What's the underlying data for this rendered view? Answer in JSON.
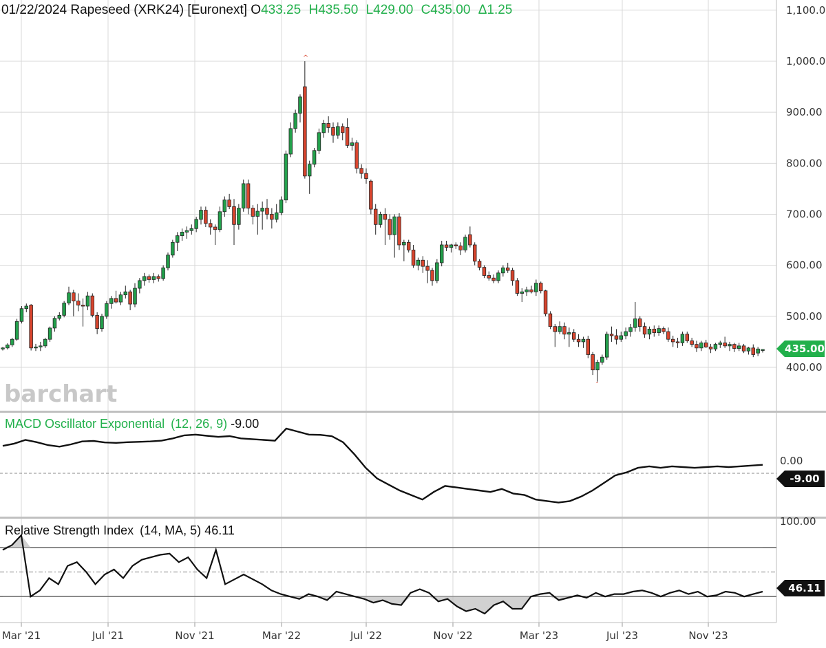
{
  "header": {
    "date": "01/22/2024",
    "symbol": "Rapeseed (XRK24) [Euronext]",
    "open_label": "O",
    "open": "433.25",
    "high": "H435.50",
    "low": "L429.00",
    "close": "C435.00",
    "change": "Δ1.25"
  },
  "watermark": "barchart",
  "colors": {
    "up": "#22a04b",
    "down": "#d9452e",
    "badge_green": "#22b04b",
    "badge_black": "#111111",
    "grid": "#d8d8d8",
    "macd_title": "#22b04b"
  },
  "price_axis": {
    "ticks": [
      "1,100.00",
      "1,000.00",
      "900.00",
      "800.00",
      "700.00",
      "600.00",
      "500.00",
      "400.00"
    ],
    "tick_values": [
      1100,
      1000,
      900,
      800,
      700,
      600,
      500,
      400
    ]
  },
  "last_price_badge": "435.00",
  "x_axis": {
    "labels": [
      "Mar '21",
      "Jul '21",
      "Nov '21",
      "Mar '22",
      "Jul '22",
      "Nov '22",
      "Mar '23",
      "Jul '23",
      "Nov '23"
    ]
  },
  "macd": {
    "title": "MACD Oscillator Exponential",
    "params": "(12, 26, 9)",
    "value": "-9.00",
    "badge": "-9.00",
    "axis_partial_label": "0.00"
  },
  "rsi": {
    "title": "Relative Strength Index",
    "params": "(14, MA, 5)",
    "value": "46.11",
    "badge": "46.11",
    "axis_partial_label": "100.00"
  },
  "chart_data": {
    "type": "candlestick",
    "title": "Rapeseed (XRK24) [Euronext]",
    "interval": "weekly",
    "ylim": [
      355,
      1115
    ],
    "candles": [
      {
        "o": 436,
        "h": 440,
        "l": 433,
        "c": 438
      },
      {
        "o": 438,
        "h": 447,
        "l": 435,
        "c": 444
      },
      {
        "o": 444,
        "h": 458,
        "l": 440,
        "c": 455
      },
      {
        "o": 455,
        "h": 495,
        "l": 452,
        "c": 490
      },
      {
        "o": 490,
        "h": 520,
        "l": 486,
        "c": 515
      },
      {
        "o": 515,
        "h": 525,
        "l": 508,
        "c": 520
      },
      {
        "o": 522,
        "h": 524,
        "l": 433,
        "c": 438
      },
      {
        "o": 438,
        "h": 446,
        "l": 432,
        "c": 440
      },
      {
        "o": 440,
        "h": 450,
        "l": 432,
        "c": 442
      },
      {
        "o": 442,
        "h": 458,
        "l": 438,
        "c": 455
      },
      {
        "o": 455,
        "h": 480,
        "l": 450,
        "c": 477
      },
      {
        "o": 477,
        "h": 500,
        "l": 470,
        "c": 496
      },
      {
        "o": 496,
        "h": 508,
        "l": 492,
        "c": 502
      },
      {
        "o": 502,
        "h": 530,
        "l": 498,
        "c": 526
      },
      {
        "o": 526,
        "h": 558,
        "l": 522,
        "c": 546
      },
      {
        "o": 546,
        "h": 552,
        "l": 500,
        "c": 530
      },
      {
        "o": 530,
        "h": 545,
        "l": 510,
        "c": 522
      },
      {
        "o": 522,
        "h": 535,
        "l": 480,
        "c": 520
      },
      {
        "o": 520,
        "h": 548,
        "l": 512,
        "c": 540
      },
      {
        "o": 540,
        "h": 545,
        "l": 498,
        "c": 502
      },
      {
        "o": 502,
        "h": 508,
        "l": 465,
        "c": 476
      },
      {
        "o": 476,
        "h": 505,
        "l": 470,
        "c": 500
      },
      {
        "o": 500,
        "h": 530,
        "l": 495,
        "c": 525
      },
      {
        "o": 525,
        "h": 540,
        "l": 515,
        "c": 535
      },
      {
        "o": 535,
        "h": 550,
        "l": 525,
        "c": 528
      },
      {
        "o": 528,
        "h": 548,
        "l": 522,
        "c": 542
      },
      {
        "o": 542,
        "h": 560,
        "l": 535,
        "c": 548
      },
      {
        "o": 548,
        "h": 552,
        "l": 512,
        "c": 524
      },
      {
        "o": 524,
        "h": 565,
        "l": 518,
        "c": 555
      },
      {
        "o": 555,
        "h": 575,
        "l": 545,
        "c": 570
      },
      {
        "o": 570,
        "h": 585,
        "l": 560,
        "c": 578
      },
      {
        "o": 578,
        "h": 582,
        "l": 566,
        "c": 572
      },
      {
        "o": 572,
        "h": 585,
        "l": 565,
        "c": 578
      },
      {
        "o": 578,
        "h": 582,
        "l": 568,
        "c": 574
      },
      {
        "o": 574,
        "h": 600,
        "l": 570,
        "c": 595
      },
      {
        "o": 595,
        "h": 625,
        "l": 590,
        "c": 620
      },
      {
        "o": 620,
        "h": 650,
        "l": 615,
        "c": 645
      },
      {
        "o": 645,
        "h": 665,
        "l": 628,
        "c": 658
      },
      {
        "o": 658,
        "h": 672,
        "l": 648,
        "c": 665
      },
      {
        "o": 665,
        "h": 676,
        "l": 652,
        "c": 668
      },
      {
        "o": 668,
        "h": 680,
        "l": 660,
        "c": 672
      },
      {
        "o": 672,
        "h": 695,
        "l": 665,
        "c": 690
      },
      {
        "o": 690,
        "h": 715,
        "l": 680,
        "c": 708
      },
      {
        "o": 708,
        "h": 715,
        "l": 675,
        "c": 682
      },
      {
        "o": 682,
        "h": 690,
        "l": 660,
        "c": 675
      },
      {
        "o": 675,
        "h": 680,
        "l": 640,
        "c": 670
      },
      {
        "o": 670,
        "h": 715,
        "l": 665,
        "c": 705
      },
      {
        "o": 705,
        "h": 735,
        "l": 695,
        "c": 728
      },
      {
        "o": 728,
        "h": 740,
        "l": 710,
        "c": 715
      },
      {
        "o": 715,
        "h": 730,
        "l": 640,
        "c": 680
      },
      {
        "o": 680,
        "h": 720,
        "l": 670,
        "c": 712
      },
      {
        "o": 712,
        "h": 768,
        "l": 705,
        "c": 760
      },
      {
        "o": 760,
        "h": 768,
        "l": 700,
        "c": 712
      },
      {
        "o": 712,
        "h": 718,
        "l": 680,
        "c": 696
      },
      {
        "o": 696,
        "h": 720,
        "l": 660,
        "c": 706
      },
      {
        "o": 706,
        "h": 725,
        "l": 670,
        "c": 712
      },
      {
        "o": 712,
        "h": 730,
        "l": 690,
        "c": 700
      },
      {
        "o": 700,
        "h": 712,
        "l": 672,
        "c": 690
      },
      {
        "o": 690,
        "h": 720,
        "l": 684,
        "c": 703
      },
      {
        "o": 703,
        "h": 735,
        "l": 698,
        "c": 728
      },
      {
        "o": 728,
        "h": 825,
        "l": 722,
        "c": 818
      },
      {
        "o": 818,
        "h": 880,
        "l": 812,
        "c": 868
      },
      {
        "o": 868,
        "h": 905,
        "l": 860,
        "c": 898
      },
      {
        "o": 898,
        "h": 935,
        "l": 880,
        "c": 930
      },
      {
        "o": 950,
        "h": 1000,
        "l": 770,
        "c": 775
      },
      {
        "o": 775,
        "h": 805,
        "l": 740,
        "c": 798
      },
      {
        "o": 798,
        "h": 830,
        "l": 792,
        "c": 825
      },
      {
        "o": 825,
        "h": 868,
        "l": 818,
        "c": 860
      },
      {
        "o": 860,
        "h": 885,
        "l": 850,
        "c": 878
      },
      {
        "o": 878,
        "h": 892,
        "l": 860,
        "c": 870
      },
      {
        "o": 870,
        "h": 880,
        "l": 840,
        "c": 855
      },
      {
        "o": 855,
        "h": 880,
        "l": 848,
        "c": 872
      },
      {
        "o": 872,
        "h": 878,
        "l": 845,
        "c": 860
      },
      {
        "o": 870,
        "h": 888,
        "l": 830,
        "c": 835
      },
      {
        "o": 835,
        "h": 850,
        "l": 825,
        "c": 840
      },
      {
        "o": 840,
        "h": 845,
        "l": 780,
        "c": 790
      },
      {
        "o": 790,
        "h": 798,
        "l": 770,
        "c": 780
      },
      {
        "o": 780,
        "h": 790,
        "l": 760,
        "c": 770
      },
      {
        "o": 765,
        "h": 768,
        "l": 700,
        "c": 710
      },
      {
        "o": 710,
        "h": 720,
        "l": 660,
        "c": 680
      },
      {
        "o": 680,
        "h": 705,
        "l": 674,
        "c": 700
      },
      {
        "o": 700,
        "h": 712,
        "l": 640,
        "c": 690
      },
      {
        "o": 690,
        "h": 700,
        "l": 650,
        "c": 660
      },
      {
        "o": 660,
        "h": 700,
        "l": 615,
        "c": 695
      },
      {
        "o": 695,
        "h": 702,
        "l": 630,
        "c": 640
      },
      {
        "o": 640,
        "h": 650,
        "l": 608,
        "c": 645
      },
      {
        "o": 645,
        "h": 650,
        "l": 625,
        "c": 630
      },
      {
        "o": 630,
        "h": 640,
        "l": 595,
        "c": 600
      },
      {
        "o": 600,
        "h": 615,
        "l": 590,
        "c": 610
      },
      {
        "o": 610,
        "h": 618,
        "l": 585,
        "c": 598
      },
      {
        "o": 598,
        "h": 610,
        "l": 565,
        "c": 590
      },
      {
        "o": 590,
        "h": 595,
        "l": 560,
        "c": 570
      },
      {
        "o": 570,
        "h": 612,
        "l": 565,
        "c": 605
      },
      {
        "o": 605,
        "h": 648,
        "l": 598,
        "c": 640
      },
      {
        "o": 640,
        "h": 648,
        "l": 628,
        "c": 635
      },
      {
        "o": 635,
        "h": 642,
        "l": 625,
        "c": 640
      },
      {
        "o": 640,
        "h": 645,
        "l": 632,
        "c": 638
      },
      {
        "o": 638,
        "h": 645,
        "l": 620,
        "c": 630
      },
      {
        "o": 630,
        "h": 660,
        "l": 625,
        "c": 655
      },
      {
        "o": 660,
        "h": 676,
        "l": 635,
        "c": 640
      },
      {
        "o": 640,
        "h": 645,
        "l": 600,
        "c": 608
      },
      {
        "o": 608,
        "h": 612,
        "l": 590,
        "c": 596
      },
      {
        "o": 596,
        "h": 600,
        "l": 575,
        "c": 580
      },
      {
        "o": 580,
        "h": 588,
        "l": 570,
        "c": 575
      },
      {
        "o": 575,
        "h": 582,
        "l": 565,
        "c": 570
      },
      {
        "o": 570,
        "h": 590,
        "l": 565,
        "c": 585
      },
      {
        "o": 585,
        "h": 600,
        "l": 578,
        "c": 595
      },
      {
        "o": 595,
        "h": 605,
        "l": 585,
        "c": 590
      },
      {
        "o": 590,
        "h": 595,
        "l": 560,
        "c": 570
      },
      {
        "o": 570,
        "h": 575,
        "l": 540,
        "c": 545
      },
      {
        "o": 545,
        "h": 555,
        "l": 528,
        "c": 548
      },
      {
        "o": 548,
        "h": 558,
        "l": 540,
        "c": 552
      },
      {
        "o": 552,
        "h": 560,
        "l": 545,
        "c": 548
      },
      {
        "o": 548,
        "h": 572,
        "l": 540,
        "c": 565
      },
      {
        "o": 565,
        "h": 568,
        "l": 545,
        "c": 550
      },
      {
        "o": 550,
        "h": 552,
        "l": 500,
        "c": 505
      },
      {
        "o": 505,
        "h": 510,
        "l": 475,
        "c": 480
      },
      {
        "o": 480,
        "h": 485,
        "l": 440,
        "c": 470
      },
      {
        "o": 470,
        "h": 490,
        "l": 465,
        "c": 480
      },
      {
        "o": 480,
        "h": 488,
        "l": 455,
        "c": 465
      },
      {
        "o": 465,
        "h": 478,
        "l": 440,
        "c": 468
      },
      {
        "o": 468,
        "h": 475,
        "l": 450,
        "c": 455
      },
      {
        "o": 455,
        "h": 465,
        "l": 440,
        "c": 450
      },
      {
        "o": 450,
        "h": 460,
        "l": 438,
        "c": 455
      },
      {
        "o": 455,
        "h": 462,
        "l": 418,
        "c": 425
      },
      {
        "o": 425,
        "h": 430,
        "l": 385,
        "c": 395
      },
      {
        "o": 395,
        "h": 415,
        "l": 372,
        "c": 410
      },
      {
        "o": 410,
        "h": 425,
        "l": 405,
        "c": 420
      },
      {
        "o": 420,
        "h": 470,
        "l": 415,
        "c": 465
      },
      {
        "o": 465,
        "h": 480,
        "l": 450,
        "c": 462
      },
      {
        "o": 462,
        "h": 475,
        "l": 445,
        "c": 455
      },
      {
        "o": 455,
        "h": 470,
        "l": 450,
        "c": 462
      },
      {
        "o": 462,
        "h": 478,
        "l": 455,
        "c": 470
      },
      {
        "o": 470,
        "h": 485,
        "l": 460,
        "c": 478
      },
      {
        "o": 478,
        "h": 528,
        "l": 470,
        "c": 495
      },
      {
        "o": 495,
        "h": 500,
        "l": 470,
        "c": 480
      },
      {
        "o": 480,
        "h": 488,
        "l": 458,
        "c": 465
      },
      {
        "o": 465,
        "h": 480,
        "l": 455,
        "c": 475
      },
      {
        "o": 475,
        "h": 482,
        "l": 460,
        "c": 468
      },
      {
        "o": 468,
        "h": 482,
        "l": 462,
        "c": 476
      },
      {
        "o": 476,
        "h": 480,
        "l": 465,
        "c": 470
      },
      {
        "o": 470,
        "h": 478,
        "l": 450,
        "c": 455
      },
      {
        "o": 455,
        "h": 462,
        "l": 440,
        "c": 450
      },
      {
        "o": 450,
        "h": 458,
        "l": 438,
        "c": 448
      },
      {
        "o": 448,
        "h": 470,
        "l": 442,
        "c": 465
      },
      {
        "o": 465,
        "h": 470,
        "l": 448,
        "c": 452
      },
      {
        "o": 452,
        "h": 458,
        "l": 440,
        "c": 445
      },
      {
        "o": 445,
        "h": 452,
        "l": 430,
        "c": 438
      },
      {
        "o": 438,
        "h": 452,
        "l": 432,
        "c": 448
      },
      {
        "o": 448,
        "h": 454,
        "l": 438,
        "c": 440
      },
      {
        "o": 440,
        "h": 446,
        "l": 428,
        "c": 436
      },
      {
        "o": 436,
        "h": 448,
        "l": 432,
        "c": 445
      },
      {
        "o": 445,
        "h": 452,
        "l": 438,
        "c": 448
      },
      {
        "o": 448,
        "h": 460,
        "l": 438,
        "c": 442
      },
      {
        "o": 442,
        "h": 450,
        "l": 432,
        "c": 445
      },
      {
        "o": 445,
        "h": 448,
        "l": 430,
        "c": 437
      },
      {
        "o": 437,
        "h": 448,
        "l": 432,
        "c": 442
      },
      {
        "o": 442,
        "h": 446,
        "l": 428,
        "c": 432
      },
      {
        "o": 432,
        "h": 440,
        "l": 425,
        "c": 438
      },
      {
        "o": 438,
        "h": 445,
        "l": 420,
        "c": 425
      },
      {
        "o": 428,
        "h": 440,
        "l": 422,
        "c": 436
      },
      {
        "o": 433.25,
        "h": 435.5,
        "l": 429,
        "c": 435
      }
    ],
    "macd_line": [
      -5,
      10,
      35,
      20,
      0,
      -10,
      5,
      25,
      28,
      18,
      15,
      20,
      22,
      25,
      30,
      45,
      65,
      70,
      62,
      55,
      60,
      45,
      40,
      35,
      30,
      110,
      90,
      70,
      68,
      60,
      20,
      -60,
      -150,
      -220,
      -260,
      -300,
      -330,
      -360,
      -310,
      -270,
      -280,
      -290,
      -300,
      -310,
      -290,
      -320,
      -330,
      -360,
      -370,
      -380,
      -370,
      -340,
      -300,
      -250,
      -200,
      -180,
      -150,
      -140,
      -150,
      -140,
      -145,
      -150,
      -145,
      -140,
      -145,
      -140,
      -135,
      -130
    ],
    "rsi_line": [
      68,
      72,
      80,
      30,
      35,
      45,
      40,
      55,
      58,
      50,
      40,
      48,
      52,
      45,
      55,
      60,
      62,
      64,
      65,
      58,
      62,
      52,
      45,
      68,
      40,
      44,
      48,
      44,
      40,
      35,
      32,
      30,
      28,
      32,
      30,
      27,
      34,
      32,
      30,
      28,
      25,
      27,
      24,
      23,
      33,
      36,
      33,
      26,
      28,
      22,
      18,
      20,
      16,
      23,
      26,
      20,
      20,
      30,
      32,
      33,
      27,
      29,
      31,
      29,
      33,
      30,
      32,
      32,
      34,
      35,
      33,
      30,
      33,
      35,
      32,
      34,
      30,
      31,
      34,
      33,
      30,
      32,
      34
    ]
  }
}
